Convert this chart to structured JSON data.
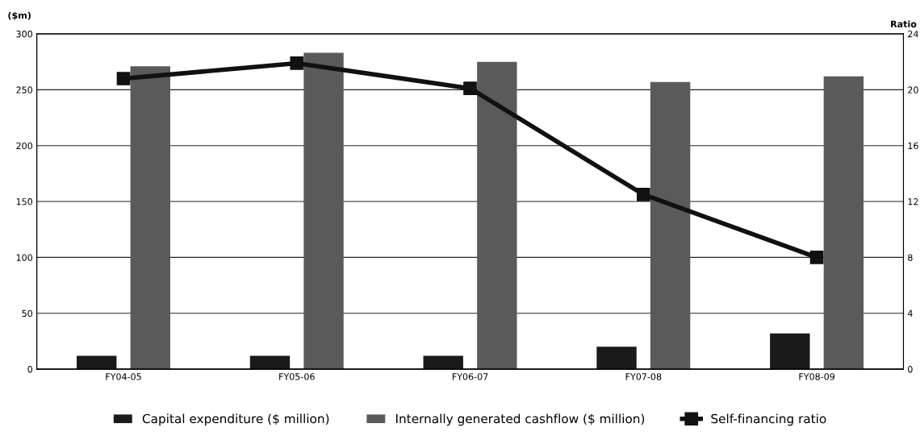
{
  "chart_data": {
    "type": "bar",
    "categories": [
      "FY04-05",
      "FY05-06",
      "FY06-07",
      "FY07-08",
      "FY08-09"
    ],
    "series": [
      {
        "name": "Capital expenditure ($ million)",
        "color": "#1a1a1a",
        "values": [
          12,
          12,
          12,
          20,
          32
        ]
      },
      {
        "name": "Internally generated cashflow ($ million)",
        "color": "#5a5a5a",
        "values": [
          271,
          283,
          275,
          257,
          262
        ]
      },
      {
        "name": "Self-financing ratio",
        "type": "line",
        "axis": "y2",
        "color": "#111111",
        "marker": "square",
        "values": [
          20.8,
          21.9,
          20.1,
          12.5,
          8.0
        ]
      }
    ],
    "ylabel": "($m)",
    "y2label": "Ratio",
    "ylim": [
      0,
      300
    ],
    "yticks": [
      0,
      50,
      100,
      150,
      200,
      250,
      300
    ],
    "y2lim": [
      0,
      24
    ],
    "y2ticks": [
      0,
      4,
      8,
      12,
      16,
      20,
      24
    ],
    "grid": "y",
    "legend": "bottom"
  }
}
